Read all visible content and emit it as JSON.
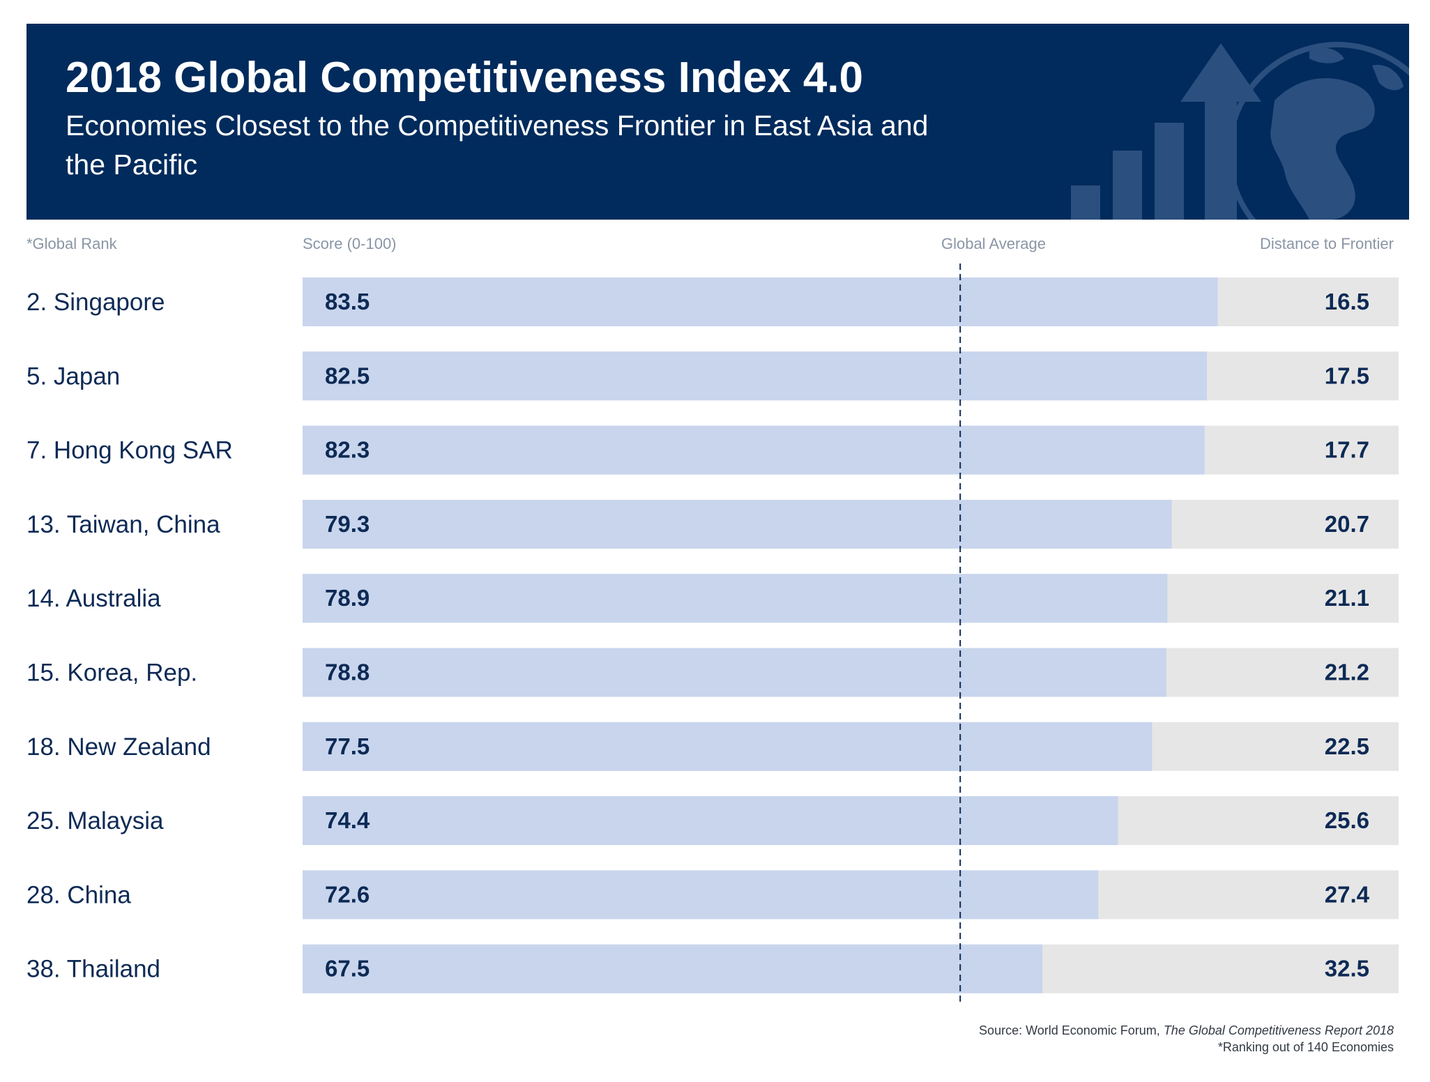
{
  "title": "2018 Global Competitiveness Index 4.0",
  "subtitle": "Economies Closest to the Competitiveness Frontier in East Asia and the Pacific",
  "headers": {
    "rank": "*Global Rank",
    "score": "Score (0-100)",
    "average": "Global Average",
    "distance": "Distance to Frontier"
  },
  "footer": {
    "source_prefix": "Source:  World Economic Forum, ",
    "source_title": "The Global Competitiveness Report 2018",
    "note": "*Ranking out of 140 Economies"
  },
  "colors": {
    "banner": "#002b5c",
    "score_bar": "#c8d5ed",
    "remainder_bar": "#e6e6e6",
    "text": "#0d2a55",
    "average_line": "#0d2a55"
  },
  "chart_data": {
    "type": "bar",
    "orientation": "horizontal",
    "stacked": true,
    "xlim": [
      0,
      100
    ],
    "global_average": 60,
    "categories": [
      "2. Singapore",
      "5. Japan",
      "7. Hong Kong SAR",
      "13. Taiwan, China",
      "14. Australia",
      "15. Korea, Rep.",
      "18. New Zealand",
      "25. Malaysia",
      "28. China",
      "38. Thailand"
    ],
    "series": [
      {
        "name": "Score (0-100)",
        "values": [
          83.5,
          82.5,
          82.3,
          79.3,
          78.9,
          78.8,
          77.5,
          74.4,
          72.6,
          67.5
        ]
      },
      {
        "name": "Distance to Frontier",
        "values": [
          16.5,
          17.5,
          17.7,
          20.7,
          21.1,
          21.2,
          22.5,
          25.6,
          27.4,
          32.5
        ]
      }
    ]
  }
}
